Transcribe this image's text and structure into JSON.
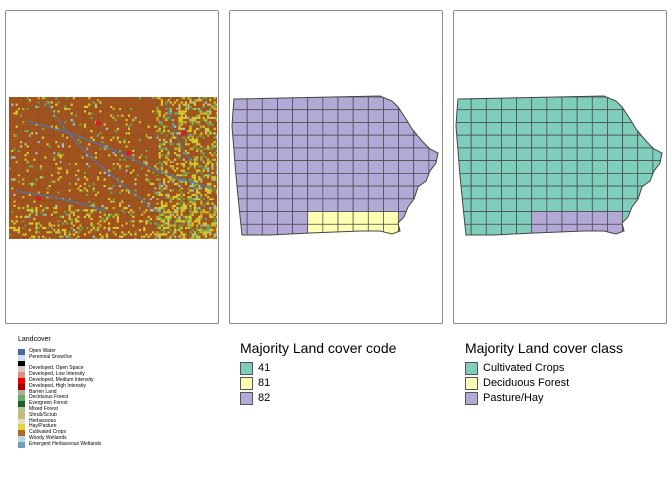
{
  "maps": {
    "raster_colors": {
      "crops": "#a0531f",
      "hay": "#d8cb2e",
      "deciduous": "#6aa84f",
      "water": "#4a78b0",
      "developed": "#d81f26",
      "wetland": "#9cc0d6"
    },
    "county_fill_crops": "#7fcdbb",
    "county_fill_forest": "#ffffb3",
    "county_fill_pasture": "#b3a9d6",
    "county_border": "#444444"
  },
  "legend_raster": {
    "title": "Landcover",
    "items": [
      {
        "label": "Open Water",
        "color": "#466b9f"
      },
      {
        "label": "Perennial Snow/Ice",
        "color": "#d1def8"
      },
      {
        "label": "",
        "color": "#000000"
      },
      {
        "label": "Developed, Open Space",
        "color": "#dec5c5"
      },
      {
        "label": "Developed, Low Intensity",
        "color": "#d99282"
      },
      {
        "label": "Developed, Medium Intensity",
        "color": "#eb0000"
      },
      {
        "label": "Developed, High Intensity",
        "color": "#ab0000"
      },
      {
        "label": "Barren Land",
        "color": "#b3ac9f"
      },
      {
        "label": "Deciduous Forest",
        "color": "#68ab5f"
      },
      {
        "label": "Evergreen Forest",
        "color": "#1c5f2c"
      },
      {
        "label": "Mixed Forest",
        "color": "#b5c58f"
      },
      {
        "label": "Shrub/Scrub",
        "color": "#ccb879"
      },
      {
        "label": "Herbaceous",
        "color": "#dfdfc2"
      },
      {
        "label": "Hay/Pasture",
        "color": "#dcd939"
      },
      {
        "label": "Cultivated Crops",
        "color": "#ab6c28"
      },
      {
        "label": "Woody Wetlands",
        "color": "#b8d9eb"
      },
      {
        "label": "Emergent Herbaceous Wetlands",
        "color": "#6c9fb8"
      }
    ]
  },
  "legend_code": {
    "title": "Majority Land cover code",
    "items": [
      {
        "label": "41",
        "color": "#7fcdbb"
      },
      {
        "label": "81",
        "color": "#ffffb3"
      },
      {
        "label": "82",
        "color": "#b3a9d6"
      }
    ]
  },
  "legend_class": {
    "title": "Majority Land cover class",
    "items": [
      {
        "label": "Cultivated Crops",
        "color": "#7fcdbb"
      },
      {
        "label": "Deciduous Forest",
        "color": "#ffffb3"
      },
      {
        "label": "Pasture/Hay",
        "color": "#b3a9d6"
      }
    ]
  }
}
